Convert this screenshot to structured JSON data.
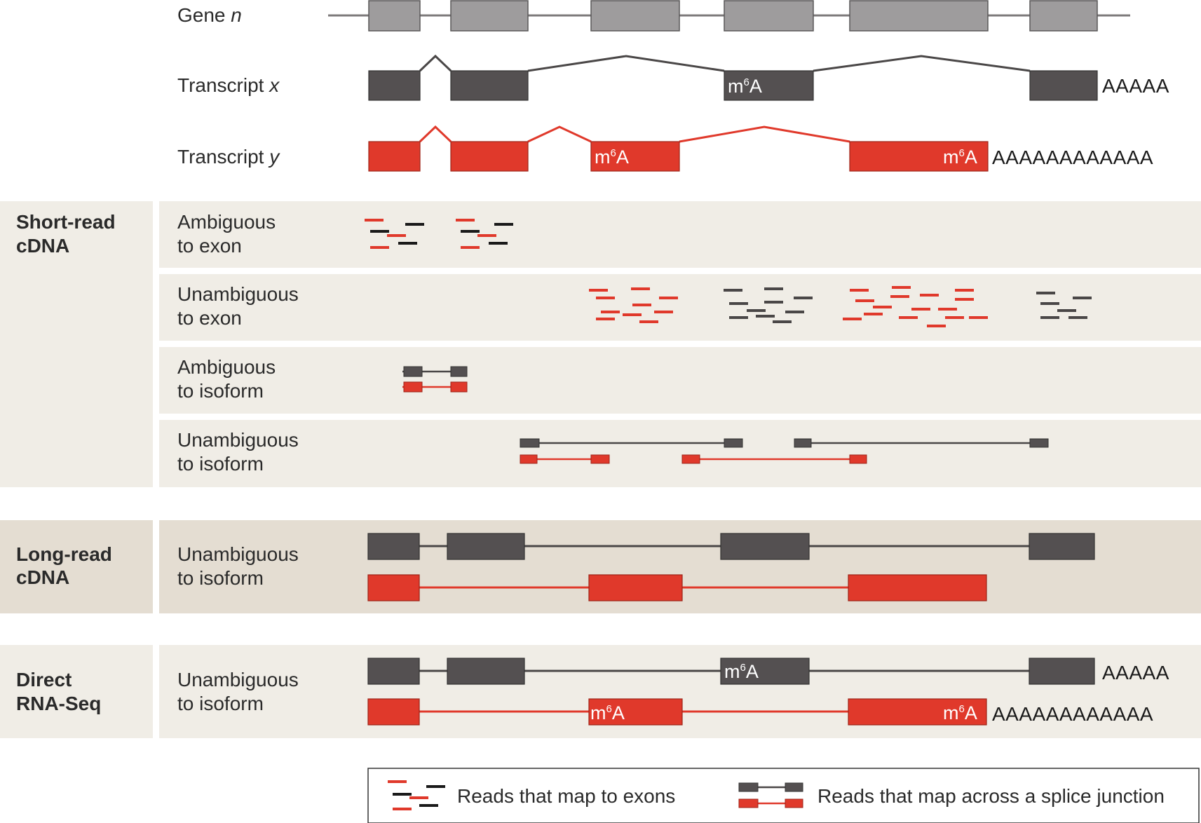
{
  "colors": {
    "gene_exon": "#9e9c9d",
    "transcript_x": "#545051",
    "transcript_y": "#e0392b",
    "panel_light": "#f0ede6",
    "panel_dark": "#e4ddd2",
    "line_dark": "#4a4747",
    "line_red": "#e0392b"
  },
  "tracks": {
    "gene": {
      "label_main": "Gene ",
      "label_italic": "n"
    },
    "transcript_x": {
      "label_main": "Transcript ",
      "label_italic": "x",
      "polyA": "AAAAA",
      "mod": "m",
      "mod_sup": "6",
      "mod_base": "A"
    },
    "transcript_y": {
      "label_main": "Transcript ",
      "label_italic": "y",
      "polyA": "AAAAAAAAAAAA",
      "mod": "m",
      "mod_sup": "6",
      "mod_base": "A"
    }
  },
  "sections": {
    "short_read": {
      "title_line1": "Short-read",
      "title_line2": "cDNA",
      "rows": [
        {
          "line1": "Ambiguous",
          "line2": "to exon"
        },
        {
          "line1": "Unambiguous",
          "line2": "to exon"
        },
        {
          "line1": "Ambiguous",
          "line2": "to isoform"
        },
        {
          "line1": "Unambiguous",
          "line2": "to isoform"
        }
      ]
    },
    "long_read": {
      "title_line1": "Long-read",
      "title_line2": "cDNA",
      "row": {
        "line1": "Unambiguous",
        "line2": "to isoform"
      }
    },
    "direct_rna": {
      "title_line1": "Direct",
      "title_line2": "RNA-Seq",
      "row": {
        "line1": "Unambiguous",
        "line2": "to isoform"
      },
      "polyA_x": "AAAAA",
      "polyA_y": "AAAAAAAAAAAA"
    }
  },
  "legend": {
    "exon_reads": "Reads that map to exons",
    "junction_reads": "Reads that map across a splice junction"
  }
}
